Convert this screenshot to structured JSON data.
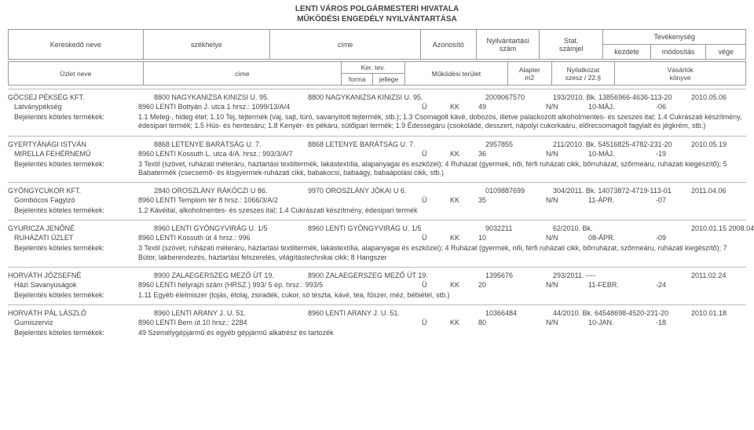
{
  "title_line1": "LENTI VÁROS POLGÁRMESTERI HIVATALA",
  "title_line2": "MŰKÖDÉSI ENGEDÉLY NYILVÁNTARTÁSA",
  "head1": {
    "c1": "Kereskedő neve",
    "c2": "székhelye",
    "c3": "címe",
    "c4": "Azonosító",
    "c5a": "Nyilvántartási",
    "c5b": "szám",
    "c6a": "Stat.",
    "c6b": "számjel",
    "tev": "Tevékenység",
    "t1": "kezdete",
    "t2": "módosítás",
    "t3": "vége"
  },
  "head2": {
    "c1": "Üzlet neve",
    "c2": "címe",
    "c3a": "Ker. tev.",
    "c3b_left": "forma",
    "c3b_right": "jellege",
    "c4": "Működési terület",
    "c5a": "Alapter",
    "c5b": "m2",
    "c6a": "Nyilatkozat",
    "c6b": "szesz / 22.§",
    "c7a": "Vásárlók",
    "c7b": "könyve"
  },
  "labels": {
    "products": "Bejelentés köteles termékek:"
  },
  "records": [
    {
      "entity": "GÖCSEJ PÉKSÉG KFT.",
      "seat": "8800 NAGYKANIZSA KINIZSI U. 95.",
      "branch": "8800 NAGYKANIZSA KINIZSI U. 95.",
      "id": "2009067570",
      "stat": "193/2010. Bk.  13856966-4636-113-20",
      "date1": "2010.05.06",
      "shop_name": "Látványpékség",
      "shop_addr": "8960 LENTI Bottyán J. utca 1  hrsz.: 1099/13/A/4",
      "col_u": "Ü",
      "col_kk": "KK",
      "m2": "49",
      "nn": "N/N",
      "vk": "10-MÁJ.",
      "vk2": "-06",
      "products": "1.1 Meleg-, hideg étel; 1.10 Tej, tejtermék (vaj, sajt, túró, savanyított tejtermék, stb.); 1.3 Csomagolt kávé, dobozos, illetve palackozott alkoholmentes- és szeszes ital; 1.4 Cukrászati készítmény, édesipari termék; 1.5 Hús- és hentesáru; 1.8 Kenyér- és pékáru, sütőipari termék; 1.9 Édességáru (csokoládé, desszert, nápolyi cukorkaáru, előrecsomagolt fagylalt és jégkrém, stb.)"
    },
    {
      "entity": "GYERTYÁNÁGI ISTVÁN",
      "seat": "8868 LETENYE BARÁTSÁG U. 7.",
      "branch": "8868 LETENYE BARÁTSÁG U. 7.",
      "id": "2957855",
      "stat": "211/2010. Bk.  54516825-4782-231-20",
      "date1": "2010.05.19",
      "shop_name": "MIRELLA FEHÉRNEMŰ",
      "shop_addr": "8960 LENTI Kossuth L. utca 4/A.  hrsz.: 993/3/A/7",
      "col_u": "Ü",
      "col_kk": "KK",
      "m2": "36",
      "nn": "N/N",
      "vk": "10-MÁJ.",
      "vk2": "-19",
      "products": "3 Textil (szövet, ruházati méteráru, háztartási textiltermék, lakástextília, alapanyagai és eszközei); 4 Ruházat (gyermek, női, férfi ruházati cikk, bőrruházat, szőrmeáru, ruházati kiegészítő); 5 Babatermék (csecsemő- és kisgyermek-ruházati cikk, babakocsi, babaágy, babaápolási cikk, stb.)"
    },
    {
      "entity": "GYÖNGYCUKOR KFT.",
      "seat": "2840 OROSZLÁNY RÁKÓCZI U 86.",
      "branch": "9970 OROSZLÁNY JÓKAI U 6.",
      "id": "0109887699",
      "stat": "304/2011. Bk.  14073872-4719-113-01",
      "date1": "2011.04.06",
      "shop_name": "Gombócos Fagyizó",
      "shop_addr": "8960 LENTI Templom tér 8  hrsz.: 1066/3/A/2",
      "col_u": "Ü",
      "col_kk": "KK",
      "m2": "35",
      "nn": "N/N",
      "vk": "11-ÁPR.",
      "vk2": "-07",
      "products": "1.2 Kávéital, alkoholmentes- és szeszes ital; 1.4 Cukrászati készítmény, édesipari termék"
    },
    {
      "entity": "GYURICZA JENŐNÉ",
      "seat": "8960 LENTI GYÖNGYVIRÁG U. 1/5",
      "branch": "8960 LENTI GYÖNGYVIRÁG U. 1/5",
      "id": "9032211",
      "stat": "62/2010. Bk.",
      "date1": "2010.01.15   2008.04.09",
      "shop_name": "RUHÁZATI ÜZLET",
      "shop_addr": "8960 LENTI Kossuth út 4  hrsz.: 996",
      "col_u": "Ü",
      "col_kk": "KK",
      "m2": "10",
      "nn": "N/N",
      "vk": "08-ÁPR.",
      "vk2": "-09",
      "products": "3 Textil (szövet, ruházati méteráru, háztartási textiltermék, lakástextília, alapanyagai és eszközei); 4 Ruházat (gyermek, női, férfi ruházati cikk, bőrruházat, szőrmeáru, ruházati kiegészítő); 7 Bútor, lakberendezés, háztartási felszerelés, világítástechnikai cikk; 8 Hangszer"
    },
    {
      "entity": "HORVÁTH JÓZSEFNÉ",
      "seat": "8900 ZALAEGERSZEG MEZŐ ÚT 19.",
      "branch": "8900 ZALAEGERSZEG MEZŐ ÚT 19.",
      "id": "1395676",
      "stat": "293/2011.        ----",
      "date1": "2011.02.24",
      "shop_name": "Házi Savanyúságok",
      "shop_addr": "8960 LENTI helyrajzi szám (HRSZ.) 993/ 5 ép.   hrsz.: 993/5",
      "col_u": "Ü",
      "col_kk": "KK",
      "m2": "20",
      "nn": "N/N",
      "vk": "11-FEBR.",
      "vk2": "-24",
      "products": "1.11 Egyéb élelmiszer (tojás, étolaj, zsiradék, cukor, só tészta, kávé, tea, fűszer, méz, bébiétel, stb.)"
    },
    {
      "entity": "HORVÁTH PÁL LÁSZLÓ",
      "seat": "8960 LENTI ARANY J. U. 51.",
      "branch": "8960 LENTI ARANY J. U. 51.",
      "id": "10366484",
      "stat": "44/2010. Bk.   64548698-4520-231-20",
      "date1": "2010.01.18",
      "shop_name": "Gumiszerviz",
      "shop_addr": "8960 LENTI Bem út 10  hrsz.: 2284",
      "col_u": "Ü",
      "col_kk": "KK",
      "m2": "80",
      "nn": "N/N",
      "vk": "10-JAN.",
      "vk2": "-18",
      "products": "49 Személygépjármű és egyéb gépjármű alkatrész és tartozék"
    }
  ]
}
